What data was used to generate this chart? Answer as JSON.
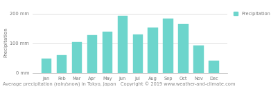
{
  "months": [
    "Jan",
    "Feb",
    "Mar",
    "Apr",
    "May",
    "Jun",
    "Jul",
    "Aug",
    "Sep",
    "Oct",
    "Nov",
    "Dec"
  ],
  "values": [
    48,
    60,
    103,
    128,
    138,
    193,
    130,
    152,
    183,
    165,
    92,
    42
  ],
  "bar_color": "#6dd5cc",
  "bar_edge_color": "#6dd5cc",
  "background_color": "#ffffff",
  "grid_color": "#d0d0d0",
  "ylabel": "Precipitation",
  "ylim": [
    0,
    210
  ],
  "yticks": [
    0,
    100,
    200
  ],
  "ytick_labels": [
    "0 mm",
    "100 mm",
    "200 mm"
  ],
  "xlabel_text": "Average precipitation (rain/snow) in Tokyo, Japan",
  "copyright_text": "Copyright © 2019 www.weather-and-climate.com",
  "legend_label": "Precipitation",
  "legend_color": "#6dd5cc",
  "title_fontsize": 4.8,
  "axis_fontsize": 5.0,
  "tick_fontsize": 4.8
}
